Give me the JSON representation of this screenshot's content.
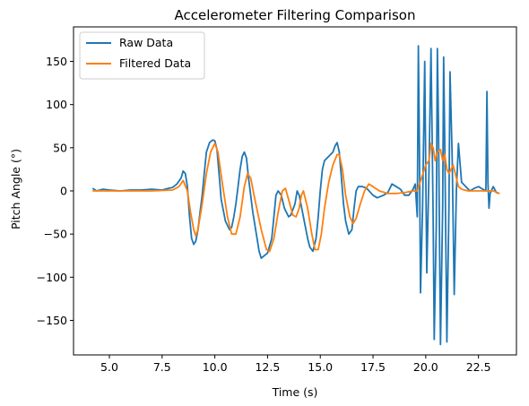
{
  "chart_data": {
    "type": "line",
    "title": "Accelerometer Filtering Comparison",
    "xlabel": "Time (s)",
    "ylabel": "Pitch Angle (°)",
    "xlim": [
      3.3,
      24.3
    ],
    "ylim": [
      -190,
      190
    ],
    "xticks": [
      5.0,
      7.5,
      10.0,
      12.5,
      15.0,
      17.5,
      20.0,
      22.5
    ],
    "xtick_labels": [
      "5.0",
      "7.5",
      "10.0",
      "12.5",
      "15.0",
      "17.5",
      "20.0",
      "22.5"
    ],
    "yticks": [
      150,
      100,
      50,
      0,
      -50,
      -100,
      -150
    ],
    "ytick_labels": [
      "150",
      "100",
      "50",
      "0",
      "−50",
      "−100",
      "−150"
    ],
    "legend_position": "top-left",
    "grid": false,
    "series": [
      {
        "name": "Raw Data",
        "color": "#1f77b4",
        "points": [
          [
            4.2,
            3
          ],
          [
            4.4,
            0
          ],
          [
            4.7,
            2
          ],
          [
            5.0,
            1
          ],
          [
            5.5,
            0
          ],
          [
            6.0,
            1
          ],
          [
            6.5,
            1
          ],
          [
            7.0,
            2
          ],
          [
            7.5,
            1
          ],
          [
            7.8,
            3
          ],
          [
            8.0,
            4
          ],
          [
            8.2,
            8
          ],
          [
            8.4,
            15
          ],
          [
            8.5,
            23
          ],
          [
            8.6,
            20
          ],
          [
            8.7,
            5
          ],
          [
            8.8,
            -30
          ],
          [
            8.9,
            -55
          ],
          [
            9.0,
            -62
          ],
          [
            9.1,
            -58
          ],
          [
            9.2,
            -45
          ],
          [
            9.3,
            -25
          ],
          [
            9.4,
            -5
          ],
          [
            9.5,
            20
          ],
          [
            9.6,
            45
          ],
          [
            9.75,
            56
          ],
          [
            9.9,
            59
          ],
          [
            10.0,
            58
          ],
          [
            10.1,
            48
          ],
          [
            10.2,
            20
          ],
          [
            10.3,
            -10
          ],
          [
            10.5,
            -35
          ],
          [
            10.7,
            -45
          ],
          [
            10.8,
            -42
          ],
          [
            10.9,
            -30
          ],
          [
            11.0,
            -15
          ],
          [
            11.1,
            5
          ],
          [
            11.2,
            25
          ],
          [
            11.3,
            40
          ],
          [
            11.4,
            45
          ],
          [
            11.5,
            38
          ],
          [
            11.6,
            15
          ],
          [
            11.8,
            -25
          ],
          [
            12.0,
            -55
          ],
          [
            12.1,
            -70
          ],
          [
            12.2,
            -78
          ],
          [
            12.35,
            -75
          ],
          [
            12.5,
            -72
          ],
          [
            12.7,
            -55
          ],
          [
            12.8,
            -30
          ],
          [
            12.9,
            -5
          ],
          [
            13.0,
            0
          ],
          [
            13.15,
            -5
          ],
          [
            13.3,
            -20
          ],
          [
            13.5,
            -30
          ],
          [
            13.6,
            -28
          ],
          [
            13.8,
            -15
          ],
          [
            13.9,
            0
          ],
          [
            14.0,
            -5
          ],
          [
            14.2,
            -30
          ],
          [
            14.4,
            -55
          ],
          [
            14.5,
            -65
          ],
          [
            14.65,
            -70
          ],
          [
            14.8,
            -55
          ],
          [
            14.9,
            -30
          ],
          [
            15.0,
            0
          ],
          [
            15.1,
            25
          ],
          [
            15.2,
            35
          ],
          [
            15.4,
            40
          ],
          [
            15.6,
            45
          ],
          [
            15.7,
            52
          ],
          [
            15.8,
            56
          ],
          [
            15.9,
            45
          ],
          [
            16.0,
            15
          ],
          [
            16.1,
            -15
          ],
          [
            16.2,
            -35
          ],
          [
            16.35,
            -50
          ],
          [
            16.5,
            -45
          ],
          [
            16.6,
            -20
          ],
          [
            16.7,
            0
          ],
          [
            16.8,
            5
          ],
          [
            17.0,
            5
          ],
          [
            17.2,
            3
          ],
          [
            17.5,
            -5
          ],
          [
            17.7,
            -8
          ],
          [
            18.0,
            -5
          ],
          [
            18.2,
            -2
          ],
          [
            18.4,
            8
          ],
          [
            18.6,
            5
          ],
          [
            18.8,
            2
          ],
          [
            19.0,
            -5
          ],
          [
            19.2,
            -5
          ],
          [
            19.4,
            2
          ],
          [
            19.5,
            8
          ],
          [
            19.6,
            -30
          ],
          [
            19.65,
            168
          ],
          [
            19.7,
            50
          ],
          [
            19.75,
            -118
          ],
          [
            19.85,
            -20
          ],
          [
            19.95,
            150
          ],
          [
            20.0,
            30
          ],
          [
            20.05,
            -95
          ],
          [
            20.15,
            20
          ],
          [
            20.25,
            165
          ],
          [
            20.35,
            -30
          ],
          [
            20.4,
            -172
          ],
          [
            20.5,
            -40
          ],
          [
            20.55,
            165
          ],
          [
            20.6,
            80
          ],
          [
            20.7,
            -178
          ],
          [
            20.8,
            -20
          ],
          [
            20.85,
            155
          ],
          [
            20.9,
            60
          ],
          [
            21.0,
            -175
          ],
          [
            21.1,
            -20
          ],
          [
            21.15,
            138
          ],
          [
            21.25,
            40
          ],
          [
            21.35,
            -120
          ],
          [
            21.45,
            0
          ],
          [
            21.55,
            55
          ],
          [
            21.7,
            10
          ],
          [
            21.9,
            5
          ],
          [
            22.1,
            0
          ],
          [
            22.3,
            3
          ],
          [
            22.5,
            5
          ],
          [
            22.7,
            2
          ],
          [
            22.85,
            0
          ],
          [
            22.9,
            115
          ],
          [
            22.95,
            10
          ],
          [
            23.0,
            -20
          ],
          [
            23.05,
            -3
          ],
          [
            23.2,
            5
          ],
          [
            23.35,
            -2
          ],
          [
            23.5,
            -3
          ]
        ]
      },
      {
        "name": "Filtered Data",
        "color": "#ff7f0e",
        "points": [
          [
            4.2,
            0
          ],
          [
            5.0,
            0
          ],
          [
            6.0,
            0
          ],
          [
            7.0,
            0
          ],
          [
            8.0,
            1
          ],
          [
            8.3,
            5
          ],
          [
            8.5,
            12
          ],
          [
            8.7,
            0
          ],
          [
            8.85,
            -25
          ],
          [
            9.0,
            -45
          ],
          [
            9.1,
            -52
          ],
          [
            9.2,
            -45
          ],
          [
            9.4,
            -15
          ],
          [
            9.6,
            20
          ],
          [
            9.8,
            45
          ],
          [
            10.0,
            55
          ],
          [
            10.15,
            45
          ],
          [
            10.35,
            10
          ],
          [
            10.6,
            -30
          ],
          [
            10.8,
            -50
          ],
          [
            11.0,
            -50
          ],
          [
            11.2,
            -30
          ],
          [
            11.4,
            5
          ],
          [
            11.55,
            20
          ],
          [
            11.7,
            15
          ],
          [
            11.9,
            -10
          ],
          [
            12.2,
            -45
          ],
          [
            12.45,
            -68
          ],
          [
            12.6,
            -70
          ],
          [
            12.8,
            -55
          ],
          [
            13.0,
            -25
          ],
          [
            13.2,
            0
          ],
          [
            13.35,
            3
          ],
          [
            13.5,
            -10
          ],
          [
            13.7,
            -28
          ],
          [
            13.85,
            -30
          ],
          [
            14.0,
            -20
          ],
          [
            14.1,
            -5
          ],
          [
            14.2,
            0
          ],
          [
            14.4,
            -20
          ],
          [
            14.6,
            -50
          ],
          [
            14.75,
            -68
          ],
          [
            14.9,
            -68
          ],
          [
            15.05,
            -50
          ],
          [
            15.2,
            -20
          ],
          [
            15.4,
            10
          ],
          [
            15.6,
            30
          ],
          [
            15.8,
            42
          ],
          [
            15.9,
            42
          ],
          [
            16.05,
            25
          ],
          [
            16.2,
            -5
          ],
          [
            16.4,
            -30
          ],
          [
            16.55,
            -38
          ],
          [
            16.7,
            -32
          ],
          [
            16.9,
            -15
          ],
          [
            17.1,
            0
          ],
          [
            17.3,
            8
          ],
          [
            17.5,
            5
          ],
          [
            17.8,
            0
          ],
          [
            18.2,
            -3
          ],
          [
            18.6,
            -3
          ],
          [
            19.0,
            -2
          ],
          [
            19.4,
            0
          ],
          [
            19.6,
            0
          ],
          [
            19.8,
            15
          ],
          [
            20.0,
            30
          ],
          [
            20.15,
            35
          ],
          [
            20.25,
            55
          ],
          [
            20.35,
            50
          ],
          [
            20.45,
            35
          ],
          [
            20.55,
            45
          ],
          [
            20.7,
            48
          ],
          [
            20.8,
            35
          ],
          [
            20.9,
            42
          ],
          [
            21.0,
            25
          ],
          [
            21.1,
            20
          ],
          [
            21.3,
            30
          ],
          [
            21.4,
            20
          ],
          [
            21.55,
            5
          ],
          [
            21.7,
            2
          ],
          [
            22.0,
            0
          ],
          [
            22.4,
            0
          ],
          [
            22.8,
            0
          ],
          [
            23.2,
            0
          ],
          [
            23.5,
            -3
          ]
        ]
      }
    ]
  }
}
